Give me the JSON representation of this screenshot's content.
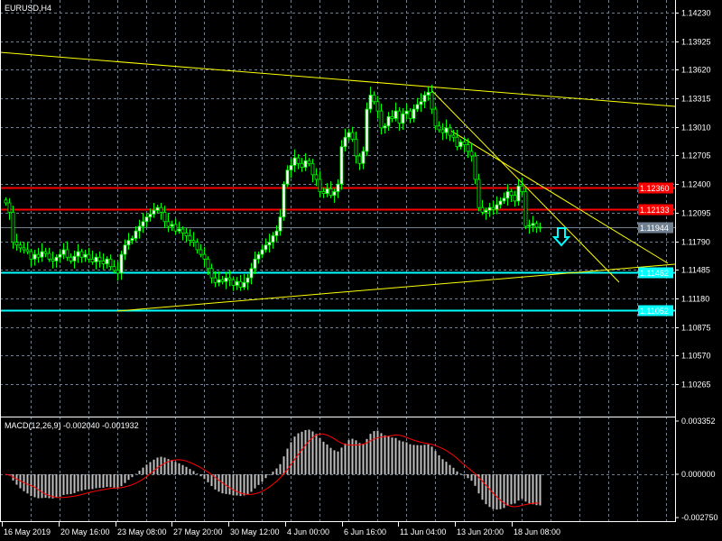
{
  "window": {
    "symbol_title": "EURUSD,H4"
  },
  "colors": {
    "background": "#000000",
    "bull": "#00ff00",
    "candle_body_up": "#ffffff",
    "trendline": "#ffff00",
    "resistance": "#ff0000",
    "support": "#00ffff",
    "current_price": "#708090",
    "grid": "#708090",
    "macd_hist": "#c0c0c0",
    "macd_signal": "#ff0000"
  },
  "price_axis": {
    "ticks": [
      "1.14230",
      "1.13925",
      "1.13620",
      "1.13315",
      "1.13010",
      "1.12705",
      "1.12400",
      "1.12095",
      "1.11790",
      "1.11485",
      "1.11180",
      "1.10875",
      "1.10570",
      "1.10265"
    ],
    "range": [
      1.0992,
      1.1437
    ]
  },
  "levels": [
    {
      "price": 1.1236,
      "label": "1.12360",
      "type": "resistance"
    },
    {
      "price": 1.12133,
      "label": "1.12133",
      "type": "resistance"
    },
    {
      "price": 1.11944,
      "label": "1.11944",
      "type": "current_price"
    },
    {
      "price": 1.11462,
      "label": "1.11462",
      "type": "support"
    },
    {
      "price": 1.11052,
      "label": "1.11052",
      "type": "support"
    }
  ],
  "time_axis": {
    "labels": [
      "16 May 2019",
      "20 May 16:00",
      "23 May 08:00",
      "27 May 20:00",
      "30 May 12:00",
      "4 Jun 00:00",
      "6 Jun 16:00",
      "11 Jun 04:00",
      "13 Jun 20:00",
      "18 Jun 08:00"
    ]
  },
  "signal_arrow": {
    "direction": "down",
    "icon": "arrow-down-icon"
  },
  "macd": {
    "label": "MACD(12,26,9) -0.002040 -0.001932",
    "ticks": [
      "0.003352",
      "0.000000",
      "-0.002750"
    ],
    "range": [
      -0.0029,
      0.0035
    ]
  },
  "chart_data": {
    "type": "candlestick",
    "series": "EURUSD H4",
    "closes": [
      1.122,
      1.121,
      1.1178,
      1.1175,
      1.1172,
      1.117,
      1.1168,
      1.116,
      1.1165,
      1.1162,
      1.1168,
      1.1166,
      1.116,
      1.1158,
      1.1162,
      1.1165,
      1.117,
      1.1162,
      1.1158,
      1.1163,
      1.1168,
      1.1162,
      1.1165,
      1.116,
      1.1157,
      1.1162,
      1.1158,
      1.1155,
      1.116,
      1.1152,
      1.1148,
      1.1145,
      1.1165,
      1.1175,
      1.118,
      1.1182,
      1.119,
      1.1195,
      1.12,
      1.1205,
      1.1208,
      1.1212,
      1.1215,
      1.121,
      1.12,
      1.1195,
      1.1197,
      1.119,
      1.1192,
      1.1188,
      1.1185,
      1.118,
      1.1178,
      1.117,
      1.1165,
      1.116,
      1.115,
      1.114,
      1.1135,
      1.1138,
      1.1136,
      1.114,
      1.1138,
      1.1132,
      1.1136,
      1.113,
      1.1135,
      1.114,
      1.115,
      1.116,
      1.1165,
      1.117,
      1.1175,
      1.1178,
      1.1185,
      1.119,
      1.1205,
      1.124,
      1.1255,
      1.126,
      1.1268,
      1.1262,
      1.1258,
      1.1265,
      1.1262,
      1.125,
      1.1245,
      1.1232,
      1.123,
      1.1235,
      1.1228,
      1.1232,
      1.124,
      1.128,
      1.129,
      1.1295,
      1.1288,
      1.127,
      1.1262,
      1.1275,
      1.132,
      1.1335,
      1.1328,
      1.1318,
      1.13,
      1.1302,
      1.1312,
      1.131,
      1.1318,
      1.1305,
      1.1315,
      1.1318,
      1.131,
      1.132,
      1.1325,
      1.1328,
      1.1335,
      1.1338,
      1.132,
      1.1302,
      1.1298,
      1.1295,
      1.13,
      1.1292,
      1.129,
      1.128,
      1.1285,
      1.1282,
      1.1275,
      1.127,
      1.1245,
      1.1215,
      1.121,
      1.1212,
      1.1215,
      1.1213,
      1.1218,
      1.1222,
      1.1225,
      1.1232,
      1.1228,
      1.1222,
      1.1238,
      1.1232,
      1.1195,
      1.1196,
      1.1198,
      1.1194,
      1.1194
    ]
  }
}
